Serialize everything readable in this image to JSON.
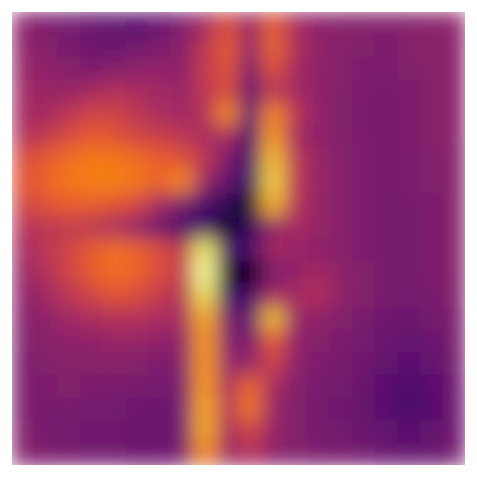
{
  "chart_data": {
    "type": "heatmap",
    "tick_labels": false,
    "cells": [
      [
        0.4,
        0.36,
        0.34,
        0.32,
        0.3,
        0.28,
        0.32,
        0.36,
        0.45,
        0.58,
        0.42,
        0.62,
        0.45,
        0.4,
        0.38,
        0.38,
        0.37,
        0.38,
        0.39,
        0.4
      ],
      [
        0.4,
        0.37,
        0.35,
        0.33,
        0.32,
        0.34,
        0.36,
        0.38,
        0.5,
        0.62,
        0.4,
        0.65,
        0.48,
        0.4,
        0.38,
        0.37,
        0.36,
        0.38,
        0.38,
        0.39
      ],
      [
        0.42,
        0.4,
        0.38,
        0.36,
        0.38,
        0.4,
        0.4,
        0.4,
        0.52,
        0.6,
        0.35,
        0.6,
        0.45,
        0.4,
        0.38,
        0.36,
        0.36,
        0.37,
        0.38,
        0.39
      ],
      [
        0.44,
        0.42,
        0.42,
        0.45,
        0.48,
        0.46,
        0.44,
        0.42,
        0.5,
        0.58,
        0.3,
        0.5,
        0.45,
        0.4,
        0.37,
        0.36,
        0.35,
        0.36,
        0.38,
        0.39
      ],
      [
        0.45,
        0.45,
        0.5,
        0.55,
        0.55,
        0.5,
        0.46,
        0.44,
        0.48,
        0.72,
        0.28,
        0.72,
        0.5,
        0.4,
        0.37,
        0.35,
        0.35,
        0.36,
        0.38,
        0.39
      ],
      [
        0.48,
        0.52,
        0.58,
        0.62,
        0.6,
        0.56,
        0.54,
        0.5,
        0.46,
        0.45,
        0.25,
        0.75,
        0.45,
        0.4,
        0.37,
        0.36,
        0.35,
        0.36,
        0.38,
        0.39
      ],
      [
        0.58,
        0.62,
        0.66,
        0.68,
        0.68,
        0.66,
        0.62,
        0.6,
        0.5,
        0.35,
        0.25,
        0.82,
        0.5,
        0.42,
        0.38,
        0.36,
        0.35,
        0.36,
        0.37,
        0.38
      ],
      [
        0.6,
        0.64,
        0.68,
        0.7,
        0.7,
        0.68,
        0.64,
        0.72,
        0.42,
        0.3,
        0.22,
        0.86,
        0.5,
        0.42,
        0.38,
        0.36,
        0.35,
        0.36,
        0.37,
        0.38
      ],
      [
        0.55,
        0.6,
        0.62,
        0.62,
        0.6,
        0.56,
        0.45,
        0.35,
        0.25,
        0.18,
        0.12,
        0.8,
        0.48,
        0.42,
        0.38,
        0.36,
        0.35,
        0.35,
        0.36,
        0.38
      ],
      [
        0.48,
        0.5,
        0.52,
        0.5,
        0.46,
        0.4,
        0.32,
        0.25,
        0.25,
        0.1,
        0.2,
        0.4,
        0.45,
        0.42,
        0.38,
        0.36,
        0.35,
        0.35,
        0.36,
        0.38
      ],
      [
        0.45,
        0.5,
        0.55,
        0.62,
        0.66,
        0.64,
        0.58,
        0.5,
        0.9,
        0.25,
        0.25,
        0.45,
        0.42,
        0.4,
        0.38,
        0.36,
        0.35,
        0.35,
        0.36,
        0.38
      ],
      [
        0.42,
        0.48,
        0.55,
        0.62,
        0.66,
        0.64,
        0.58,
        0.52,
        0.95,
        0.08,
        0.05,
        0.35,
        0.4,
        0.45,
        0.4,
        0.37,
        0.35,
        0.35,
        0.36,
        0.38
      ],
      [
        0.4,
        0.44,
        0.5,
        0.55,
        0.6,
        0.58,
        0.52,
        0.48,
        0.88,
        0.22,
        0.25,
        0.45,
        0.45,
        0.48,
        0.4,
        0.37,
        0.35,
        0.34,
        0.35,
        0.37
      ],
      [
        0.38,
        0.4,
        0.44,
        0.46,
        0.48,
        0.48,
        0.46,
        0.45,
        0.78,
        0.35,
        0.3,
        0.82,
        0.42,
        0.4,
        0.37,
        0.35,
        0.33,
        0.32,
        0.34,
        0.36
      ],
      [
        0.37,
        0.38,
        0.4,
        0.4,
        0.42,
        0.42,
        0.4,
        0.4,
        0.75,
        0.38,
        0.35,
        0.62,
        0.4,
        0.38,
        0.36,
        0.34,
        0.32,
        0.3,
        0.32,
        0.35
      ],
      [
        0.36,
        0.37,
        0.38,
        0.38,
        0.38,
        0.38,
        0.36,
        0.38,
        0.75,
        0.42,
        0.4,
        0.55,
        0.4,
        0.36,
        0.35,
        0.33,
        0.3,
        0.28,
        0.3,
        0.34
      ],
      [
        0.36,
        0.36,
        0.37,
        0.36,
        0.36,
        0.35,
        0.34,
        0.36,
        0.75,
        0.45,
        0.65,
        0.45,
        0.38,
        0.35,
        0.34,
        0.32,
        0.28,
        0.26,
        0.28,
        0.33
      ],
      [
        0.36,
        0.35,
        0.35,
        0.34,
        0.34,
        0.33,
        0.32,
        0.34,
        0.78,
        0.48,
        0.68,
        0.42,
        0.37,
        0.35,
        0.33,
        0.31,
        0.28,
        0.25,
        0.27,
        0.32
      ],
      [
        0.37,
        0.35,
        0.34,
        0.33,
        0.33,
        0.32,
        0.32,
        0.34,
        0.78,
        0.45,
        0.55,
        0.42,
        0.37,
        0.35,
        0.34,
        0.32,
        0.3,
        0.28,
        0.3,
        0.33
      ],
      [
        0.38,
        0.36,
        0.35,
        0.34,
        0.34,
        0.33,
        0.33,
        0.35,
        0.72,
        0.42,
        0.48,
        0.4,
        0.37,
        0.36,
        0.35,
        0.34,
        0.32,
        0.31,
        0.32,
        0.34
      ]
    ]
  }
}
